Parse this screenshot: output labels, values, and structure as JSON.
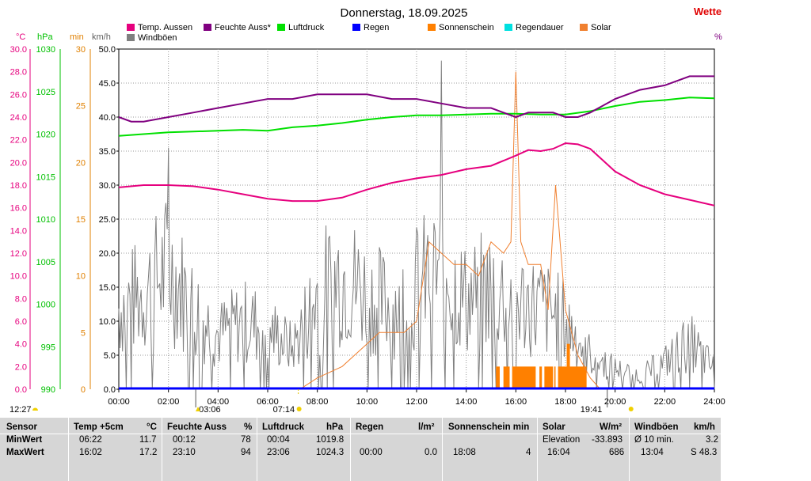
{
  "title": "Donnerstag, 18.09.2025",
  "brand_text": "Wette",
  "percent_unit": "%",
  "axes": {
    "temp_unit": "°C",
    "hpa_unit": "hPa",
    "min_unit": "min",
    "kmh_unit": "km/h",
    "temp_ticks": [
      "30.0",
      "28.0",
      "26.0",
      "24.0",
      "22.0",
      "20.0",
      "18.0",
      "16.0",
      "14.0",
      "12.0",
      "10.0",
      "8.0",
      "6.0",
      "4.0",
      "2.0",
      "0.0"
    ],
    "hpa_ticks": [
      "1030",
      "1025",
      "1020",
      "1015",
      "1010",
      "1005",
      "1000",
      "995",
      "990"
    ],
    "min_ticks": [
      "30",
      "25",
      "20",
      "15",
      "10",
      "5",
      "0"
    ],
    "kmh_ticks": [
      "50.0",
      "45.0",
      "40.0",
      "35.0",
      "30.0",
      "25.0",
      "20.0",
      "15.0",
      "10.0",
      "5.0",
      "0.0"
    ],
    "x_ticks": [
      "00:00",
      "02:00",
      "04:00",
      "06:00",
      "08:00",
      "10:00",
      "12:00",
      "14:00",
      "16:00",
      "18:00",
      "20:00",
      "22:00",
      "24:00"
    ]
  },
  "legend": [
    {
      "label": "Temp. Aussen",
      "color": "#e6007e"
    },
    {
      "label": "Feuchte Auss*",
      "color": "#800080"
    },
    {
      "label": "Luftdruck",
      "color": "#00e000"
    },
    {
      "label": "Regen",
      "color": "#0000ff"
    },
    {
      "label": "Sonnenschein",
      "color": "#ff8000"
    },
    {
      "label": "Regendauer",
      "color": "#00e0e0"
    },
    {
      "label": "Solar",
      "color": "#f08030"
    },
    {
      "label": "Windböen",
      "color": "#808080"
    }
  ],
  "time_markers": {
    "moonset": "12:27",
    "moonrise": "03:06",
    "sunrise": "07:14",
    "sunset": "19:41"
  },
  "chart_data": {
    "type": "line",
    "x_label": "",
    "x_range": [
      "00:00",
      "24:00"
    ],
    "series": [
      {
        "name": "Temp. Aussen",
        "unit": "°C",
        "color": "#e6007e",
        "x": [
          0,
          1,
          2,
          3,
          4,
          5,
          6,
          7,
          8,
          9,
          10,
          11,
          12,
          13,
          14,
          15,
          16,
          16.5,
          17,
          17.5,
          18,
          18.5,
          19,
          20,
          21,
          22,
          23,
          24
        ],
        "y": [
          17.8,
          18.0,
          18.0,
          17.9,
          17.6,
          17.2,
          16.8,
          16.6,
          16.6,
          16.9,
          17.6,
          18.2,
          18.6,
          18.9,
          19.4,
          19.7,
          20.6,
          21.1,
          21.0,
          21.2,
          21.7,
          21.6,
          21.2,
          19.2,
          18.0,
          17.2,
          16.7,
          16.2
        ]
      },
      {
        "name": "Feuchte Auss*",
        "unit": "%",
        "color": "#800080",
        "x": [
          0,
          0.5,
          1,
          2,
          3,
          4,
          5,
          6,
          7,
          8,
          9,
          10,
          11,
          12,
          13,
          14,
          15,
          16,
          16.5,
          17,
          17.5,
          18,
          18.5,
          19,
          20,
          21,
          22,
          23,
          24
        ],
        "y": [
          85,
          84,
          84,
          85,
          86,
          87,
          88,
          89,
          89,
          90,
          90,
          90,
          89,
          89,
          88,
          87,
          87,
          85,
          86,
          86,
          86,
          85,
          85,
          86,
          89,
          91,
          92,
          94,
          94
        ]
      },
      {
        "name": "Luftdruck",
        "unit": "hPa",
        "color": "#00e000",
        "x": [
          0,
          1,
          2,
          3,
          4,
          5,
          6,
          7,
          8,
          9,
          10,
          11,
          12,
          13,
          14,
          15,
          16,
          17,
          18,
          19,
          20,
          21,
          22,
          23,
          24
        ],
        "y": [
          1019.8,
          1020.0,
          1020.2,
          1020.3,
          1020.4,
          1020.5,
          1020.4,
          1020.8,
          1021.0,
          1021.3,
          1021.7,
          1022.0,
          1022.2,
          1022.2,
          1022.3,
          1022.4,
          1022.4,
          1022.3,
          1022.3,
          1022.7,
          1023.3,
          1023.8,
          1024.0,
          1024.3,
          1024.2
        ]
      },
      {
        "name": "Regen",
        "unit": "l/m²",
        "color": "#0000ff",
        "x": [
          0,
          24
        ],
        "y": [
          0,
          0
        ]
      },
      {
        "name": "Solar",
        "unit": "W/m²",
        "color": "#f08030",
        "x": [
          7.3,
          8,
          9,
          10,
          10.5,
          11,
          11.5,
          12,
          12.5,
          13,
          13.5,
          14,
          14.5,
          15,
          15.5,
          15.8,
          16,
          16.2,
          16.5,
          17,
          17.3,
          17.6,
          18,
          18.5,
          19,
          19.4
        ],
        "y": [
          0,
          1,
          2,
          4,
          5,
          5,
          5,
          6,
          13,
          12,
          11,
          11,
          10,
          13,
          12,
          13,
          28,
          13,
          11,
          11,
          7,
          18,
          7,
          3,
          1,
          0
        ]
      },
      {
        "name": "Sonnenschein",
        "unit": "min",
        "color": "#ff8000",
        "x": [
          15.2,
          16,
          16.5,
          17,
          17.5,
          18,
          18.5,
          18.8
        ],
        "y": [
          2,
          2,
          2,
          2,
          2,
          2,
          2,
          2
        ]
      },
      {
        "name": "Windböen",
        "unit": "km/h",
        "color": "#808080",
        "x": [
          0,
          1,
          2,
          3,
          4,
          5,
          6,
          7,
          8,
          9,
          10,
          11,
          12,
          13,
          14,
          15,
          16,
          17,
          18,
          19,
          20,
          21,
          22,
          23,
          24
        ],
        "y": [
          12,
          14,
          18,
          12,
          8,
          10,
          9,
          6,
          14,
          17,
          14,
          12,
          15,
          18,
          13,
          15,
          13,
          12,
          10,
          5,
          3,
          2,
          4,
          7,
          3
        ],
        "peak": [
          {
            "x": 13,
            "y": 48.3
          },
          {
            "x": 2,
            "y": 35.5
          }
        ]
      }
    ]
  },
  "summary": {
    "headers": {
      "sensor": "Sensor",
      "temp": "Temp +5cm",
      "temp_unit": "°C",
      "hum": "Feuchte Auss",
      "hum_unit": "%",
      "press": "Luftdruck",
      "press_unit": "hPa",
      "rain": "Regen",
      "rain_unit": "l/m²",
      "sun": "Sonnenschein min",
      "solar": "Solar",
      "solar_unit": "W/m²",
      "wind": "Windböen",
      "wind_unit": "km/h"
    },
    "rows": [
      {
        "label": "MinWert",
        "temp_t": "06:22",
        "temp_v": "11.7",
        "hum_t": "00:12",
        "hum_v": "78",
        "press_t": "00:04",
        "press_v": "1019.8",
        "rain_t": "",
        "rain_v": "",
        "sun_t": "",
        "sun_v": "",
        "solar_t": "Elevation",
        "solar_v": "-33.893",
        "wind_t": "Ø 10 min.",
        "wind_v": "3.2"
      },
      {
        "label": "MaxWert",
        "temp_t": "16:02",
        "temp_v": "17.2",
        "hum_t": "23:10",
        "hum_v": "94",
        "press_t": "23:06",
        "press_v": "1024.3",
        "rain_t": "00:00",
        "rain_v": "0.0",
        "sun_t": "18:08",
        "sun_v": "4",
        "solar_t": "16:04",
        "solar_v": "686",
        "wind_t": "13:04",
        "wind_v": "S 48.3"
      }
    ]
  }
}
